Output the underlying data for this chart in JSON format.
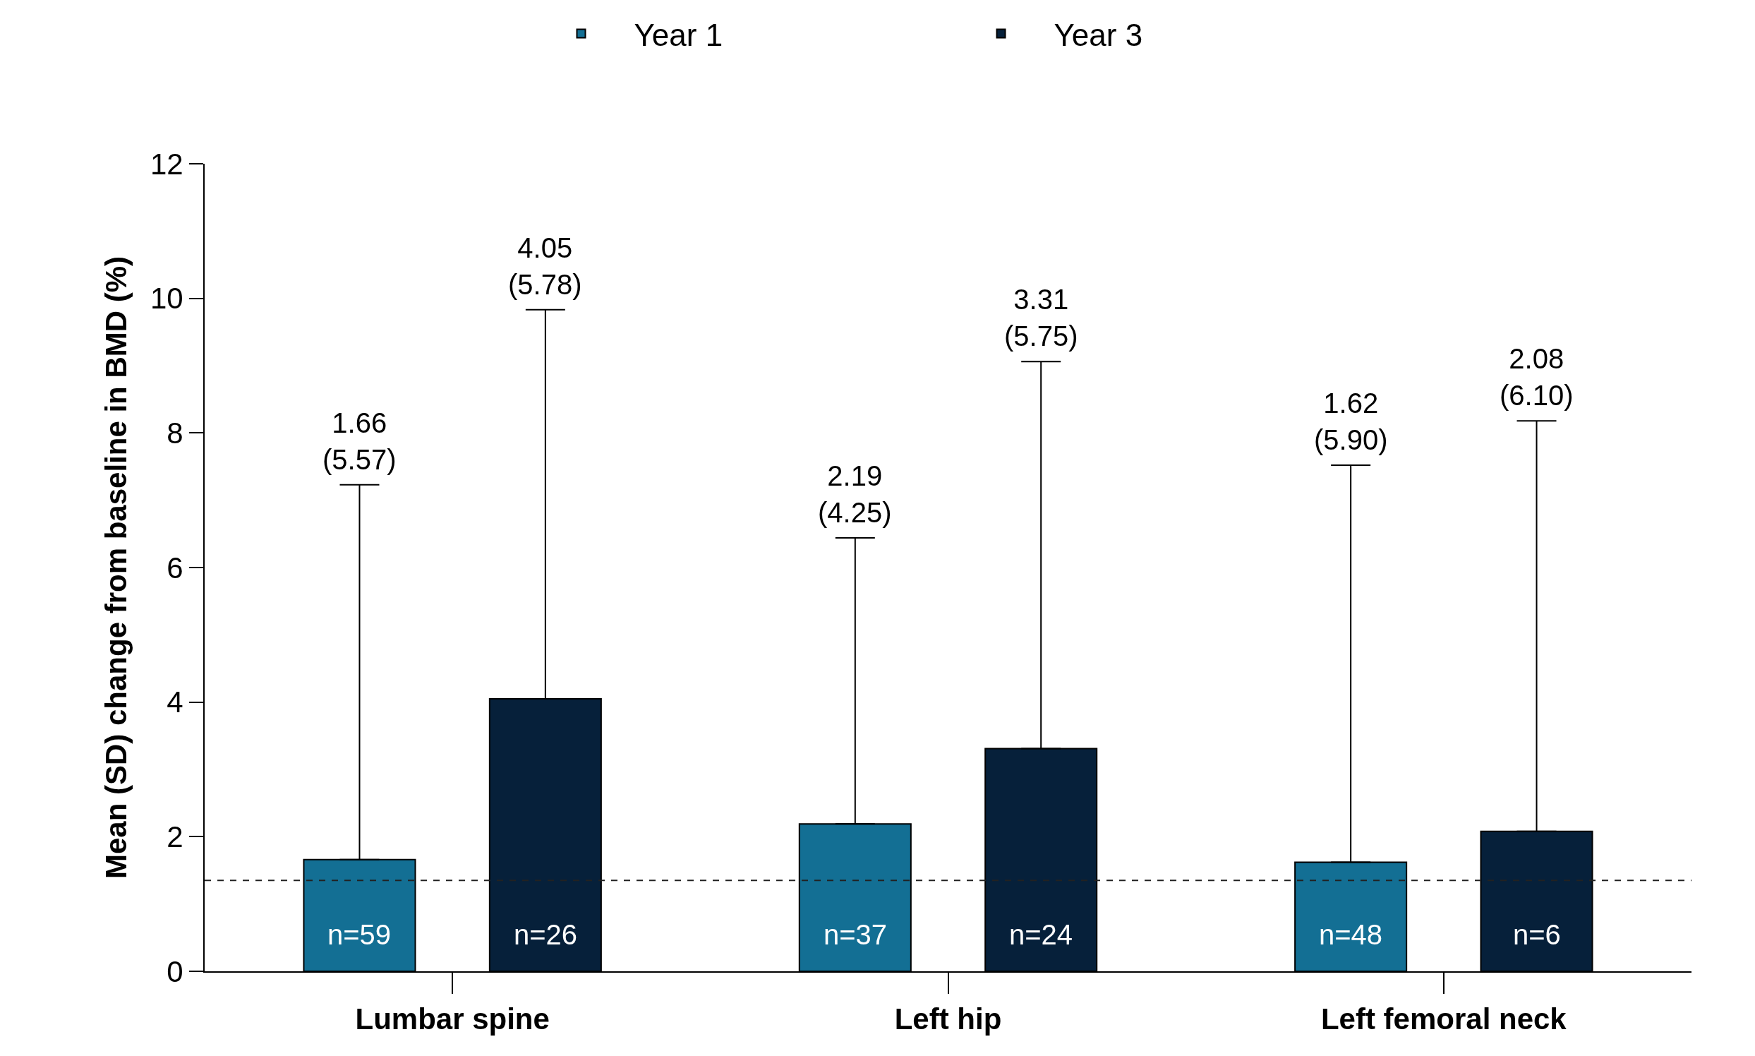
{
  "chart_data": {
    "type": "bar",
    "ylabel": "Mean (SD) change from baseline in BMD (%)",
    "categories": [
      "Lumbar spine",
      "Left hip",
      "Left femoral neck"
    ],
    "series": [
      {
        "name": "Year 1",
        "color": "#136f94",
        "values": [
          1.66,
          2.19,
          1.62
        ],
        "errors": [
          [
            1.66,
            7.23
          ],
          [
            2.19,
            6.44
          ],
          [
            1.62,
            7.52
          ]
        ]
      },
      {
        "name": "Year 3",
        "color": "#06203a",
        "values": [
          4.05,
          3.31,
          2.08
        ],
        "errors": [
          [
            4.05,
            9.83
          ],
          [
            3.31,
            9.06
          ],
          [
            2.08,
            8.18
          ]
        ]
      }
    ],
    "annotations": [
      "n=59",
      "n=37",
      "n=48",
      "n=26",
      "n=24",
      "n=6",
      "1.66\n(5.57)",
      "2.19\n(4.25)",
      "1.62\n(5.90)",
      "4.05\n(5.78)",
      "3.31\n(5.75)",
      "2.08\n(6.10)"
    ],
    "ylim": [
      0,
      12
    ],
    "yticks": [
      0,
      2,
      4,
      6,
      8,
      10,
      12
    ],
    "grid": false,
    "legend": "top",
    "ref_lines": [
      {
        "axis": "y",
        "value": 1.35,
        "color": "#222222",
        "line_style": "dashed"
      }
    ]
  }
}
